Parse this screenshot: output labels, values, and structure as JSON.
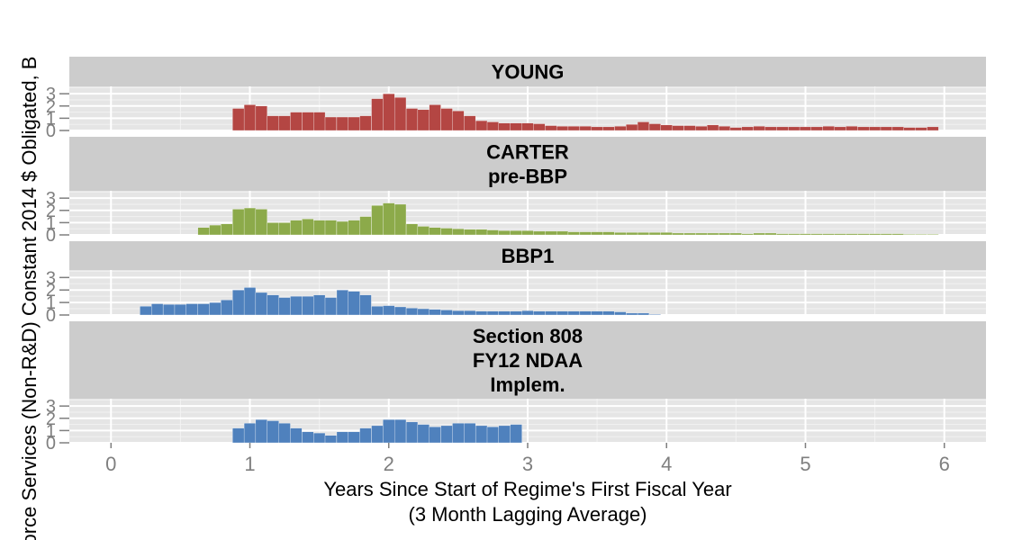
{
  "chart_data": {
    "type": "bar",
    "xlabel_lines": [
      "Years Since Start of Regime's First Fiscal Year",
      "(3 Month Lagging Average)"
    ],
    "ylabel": "orce Services (Non-R&D) Constant 2014 $ Obligated, B",
    "xlim": [
      -0.3,
      6.3
    ],
    "ylim": [
      0,
      3.6
    ],
    "x_ticks": [
      0,
      1,
      2,
      3,
      4,
      5,
      6
    ],
    "y_ticks": [
      0,
      1,
      2,
      3
    ],
    "bar_width": 0.0833,
    "grid": true,
    "facets": [
      {
        "strip": [
          "YOUNG"
        ],
        "color": "#b44643",
        "x": [
          0.917,
          1.0,
          1.083,
          1.167,
          1.25,
          1.333,
          1.417,
          1.5,
          1.583,
          1.667,
          1.75,
          1.833,
          1.917,
          2.0,
          2.083,
          2.167,
          2.25,
          2.333,
          2.417,
          2.5,
          2.583,
          2.667,
          2.75,
          2.833,
          2.917,
          3.0,
          3.083,
          3.167,
          3.25,
          3.333,
          3.417,
          3.5,
          3.583,
          3.667,
          3.75,
          3.833,
          3.917,
          4.0,
          4.083,
          4.167,
          4.25,
          4.333,
          4.417,
          4.5,
          4.583,
          4.667,
          4.75,
          4.833,
          4.917,
          5.0,
          5.083,
          5.167,
          5.25,
          5.333,
          5.417,
          5.5,
          5.583,
          5.667,
          5.75,
          5.833,
          5.917
        ],
        "values": [
          1.8,
          2.1,
          2.0,
          1.2,
          1.2,
          1.5,
          1.5,
          1.5,
          1.1,
          1.1,
          1.1,
          1.2,
          2.6,
          3.0,
          2.7,
          1.8,
          1.7,
          2.1,
          1.8,
          1.6,
          1.2,
          0.8,
          0.7,
          0.6,
          0.6,
          0.6,
          0.55,
          0.4,
          0.35,
          0.35,
          0.35,
          0.3,
          0.3,
          0.35,
          0.5,
          0.7,
          0.55,
          0.45,
          0.4,
          0.4,
          0.35,
          0.45,
          0.35,
          0.25,
          0.3,
          0.35,
          0.3,
          0.3,
          0.3,
          0.3,
          0.3,
          0.35,
          0.3,
          0.35,
          0.3,
          0.3,
          0.3,
          0.3,
          0.25,
          0.25,
          0.3
        ]
      },
      {
        "strip": [
          "CARTER",
          "pre-BBP"
        ],
        "color": "#8caa4a",
        "x": [
          0.667,
          0.75,
          0.833,
          0.917,
          1.0,
          1.083,
          1.167,
          1.25,
          1.333,
          1.417,
          1.5,
          1.583,
          1.667,
          1.75,
          1.833,
          1.917,
          2.0,
          2.083,
          2.167,
          2.25,
          2.333,
          2.417,
          2.5,
          2.583,
          2.667,
          2.75,
          2.833,
          2.917,
          3.0,
          3.083,
          3.167,
          3.25,
          3.333,
          3.417,
          3.5,
          3.583,
          3.667,
          3.75,
          3.833,
          3.917,
          4.0,
          4.083,
          4.167,
          4.25,
          4.333,
          4.417,
          4.5,
          4.583,
          4.667,
          4.75,
          4.833,
          4.917,
          5.0,
          5.083,
          5.167,
          5.25,
          5.333,
          5.417,
          5.5,
          5.583,
          5.667,
          5.75,
          5.833,
          5.917
        ],
        "values": [
          0.6,
          0.8,
          0.9,
          2.1,
          2.2,
          2.1,
          1.0,
          1.0,
          1.2,
          1.3,
          1.2,
          1.2,
          1.1,
          1.2,
          1.5,
          2.4,
          2.6,
          2.5,
          0.9,
          0.7,
          0.6,
          0.55,
          0.5,
          0.45,
          0.45,
          0.4,
          0.35,
          0.35,
          0.35,
          0.3,
          0.3,
          0.3,
          0.25,
          0.25,
          0.25,
          0.25,
          0.2,
          0.2,
          0.2,
          0.2,
          0.2,
          0.15,
          0.15,
          0.15,
          0.15,
          0.15,
          0.15,
          0.1,
          0.15,
          0.15,
          0.1,
          0.1,
          0.1,
          0.1,
          0.1,
          0.1,
          0.1,
          0.1,
          0.1,
          0.1,
          0.1,
          0.05,
          0.05,
          0.05
        ]
      },
      {
        "strip": [
          "BBP1"
        ],
        "color": "#4f81bd",
        "x": [
          0.25,
          0.333,
          0.417,
          0.5,
          0.583,
          0.667,
          0.75,
          0.833,
          0.917,
          1.0,
          1.083,
          1.167,
          1.25,
          1.333,
          1.417,
          1.5,
          1.583,
          1.667,
          1.75,
          1.833,
          1.917,
          2.0,
          2.083,
          2.167,
          2.25,
          2.333,
          2.417,
          2.5,
          2.583,
          2.667,
          2.75,
          2.833,
          2.917,
          3.0,
          3.083,
          3.167,
          3.25,
          3.333,
          3.417,
          3.5,
          3.583,
          3.667,
          3.75,
          3.833,
          3.917
        ],
        "values": [
          0.7,
          0.9,
          0.85,
          0.85,
          0.9,
          0.9,
          1.0,
          1.2,
          2.0,
          2.2,
          1.8,
          1.6,
          1.4,
          1.5,
          1.5,
          1.6,
          1.4,
          2.0,
          1.9,
          1.6,
          0.7,
          0.75,
          0.65,
          0.55,
          0.5,
          0.45,
          0.4,
          0.35,
          0.35,
          0.3,
          0.3,
          0.3,
          0.3,
          0.35,
          0.3,
          0.3,
          0.3,
          0.3,
          0.3,
          0.3,
          0.3,
          0.25,
          0.15,
          0.15,
          0.05
        ]
      },
      {
        "strip": [
          "Section 808",
          "FY12 NDAA",
          "Implem."
        ],
        "color": "#4f81bd",
        "x": [
          0.917,
          1.0,
          1.083,
          1.167,
          1.25,
          1.333,
          1.417,
          1.5,
          1.583,
          1.667,
          1.75,
          1.833,
          1.917,
          2.0,
          2.083,
          2.167,
          2.25,
          2.333,
          2.417,
          2.5,
          2.583,
          2.667,
          2.75,
          2.833,
          2.917
        ],
        "values": [
          1.2,
          1.6,
          1.9,
          1.8,
          1.6,
          1.2,
          0.9,
          0.8,
          0.6,
          0.9,
          0.9,
          1.2,
          1.4,
          1.9,
          1.9,
          1.7,
          1.5,
          1.3,
          1.4,
          1.6,
          1.6,
          1.4,
          1.3,
          1.4,
          1.5
        ]
      }
    ]
  }
}
